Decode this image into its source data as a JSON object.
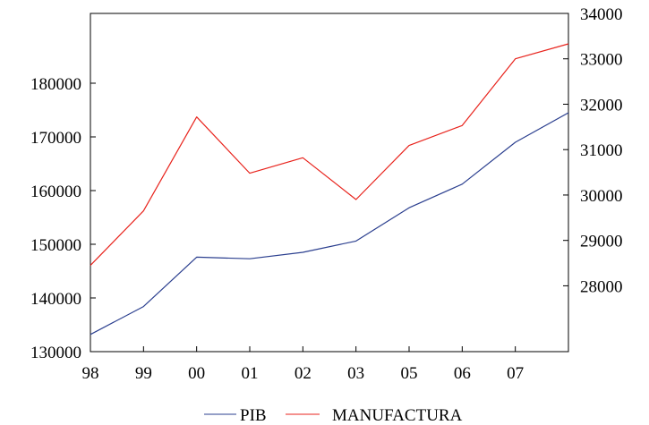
{
  "chart_data": {
    "type": "line",
    "x": [
      "98",
      "99",
      "00",
      "01",
      "02",
      "03",
      "05",
      "06",
      "07",
      ""
    ],
    "series": [
      {
        "name": "PIB",
        "axis": "left",
        "color": "#2b3f8f",
        "values": [
          133200,
          138400,
          147600,
          147300,
          148500,
          150600,
          156800,
          161200,
          169000,
          174500
        ]
      },
      {
        "name": "MANUFACTURA",
        "axis": "right",
        "color": "#e8231c",
        "values": [
          28450,
          29650,
          31720,
          30480,
          30820,
          29900,
          31090,
          31530,
          33000,
          33330
        ]
      }
    ],
    "left_axis": {
      "ylim": [
        130000,
        193000
      ],
      "ticks": [
        130000,
        140000,
        150000,
        160000,
        170000,
        180000
      ]
    },
    "right_axis": {
      "ylim": [
        26550,
        34000
      ],
      "ticks": [
        28000,
        29000,
        30000,
        31000,
        32000,
        33000,
        34000
      ]
    },
    "x_tick_labels": [
      "98",
      "99",
      "00",
      "01",
      "02",
      "03",
      "05",
      "06",
      "07"
    ],
    "legend_position": "bottom-center",
    "grid": false
  }
}
